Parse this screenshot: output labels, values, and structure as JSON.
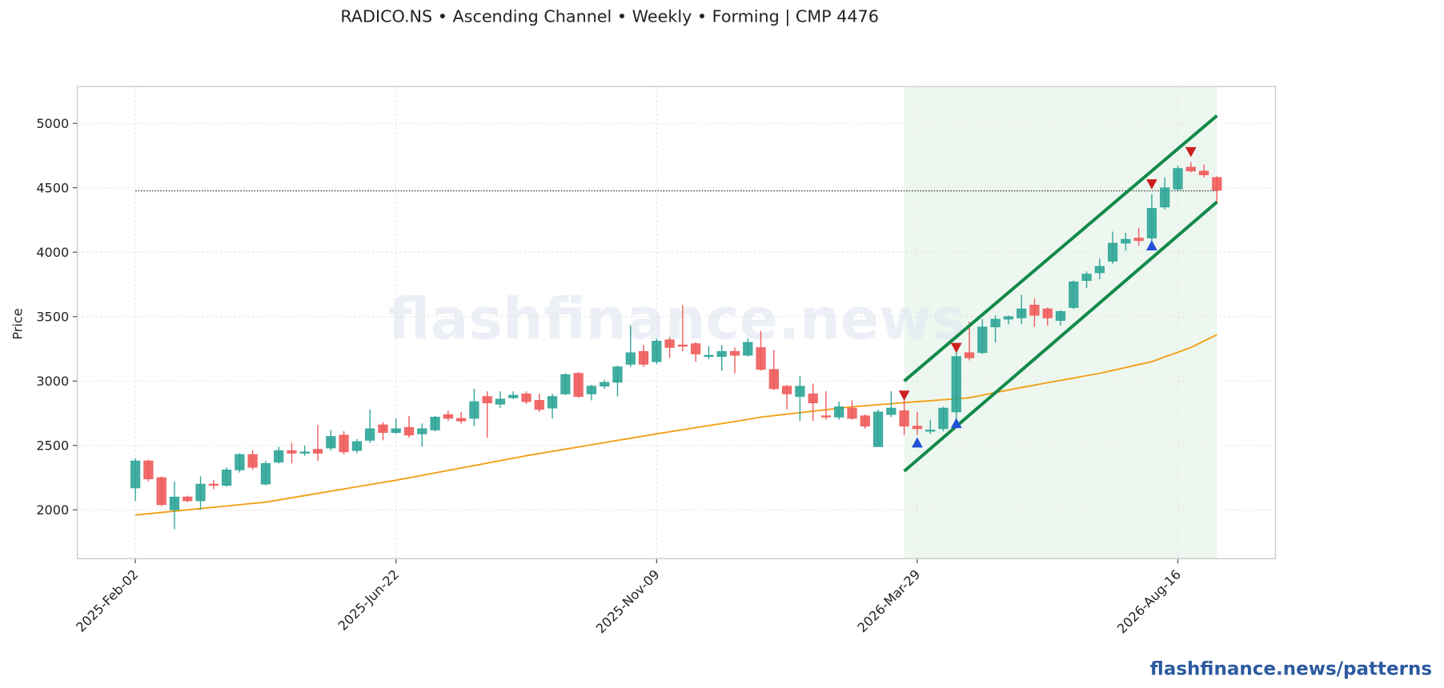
{
  "chart_data": {
    "type": "candlestick",
    "title": "RADICO.NS  •  Ascending Channel  •  Weekly  •  Forming  |  CMP 4476",
    "ylabel": "Price",
    "watermark": "flashfinance.news",
    "footer": "flashfinance.news/patterns",
    "x": [
      "2025-Feb-02",
      "2025-Feb-09",
      "2025-Feb-16",
      "2025-Feb-23",
      "2025-Mar-02",
      "2025-Mar-09",
      "2025-Mar-16",
      "2025-Mar-23",
      "2025-Mar-30",
      "2025-Apr-06",
      "2025-Apr-13",
      "2025-Apr-20",
      "2025-Apr-27",
      "2025-May-04",
      "2025-May-11",
      "2025-May-18",
      "2025-May-25",
      "2025-Jun-01",
      "2025-Jun-08",
      "2025-Jun-15",
      "2025-Jun-22",
      "2025-Jun-29",
      "2025-Jul-06",
      "2025-Jul-13",
      "2025-Jul-20",
      "2025-Jul-27",
      "2025-Aug-03",
      "2025-Aug-10",
      "2025-Aug-17",
      "2025-Aug-24",
      "2025-Aug-31",
      "2025-Sep-07",
      "2025-Sep-14",
      "2025-Sep-21",
      "2025-Sep-28",
      "2025-Oct-05",
      "2025-Oct-12",
      "2025-Oct-19",
      "2025-Oct-26",
      "2025-Nov-02",
      "2025-Nov-09",
      "2025-Nov-16",
      "2025-Nov-23",
      "2025-Nov-30",
      "2025-Dec-07",
      "2025-Dec-14",
      "2025-Dec-21",
      "2025-Dec-28",
      "2026-Jan-04",
      "2026-Jan-11",
      "2026-Jan-18",
      "2026-Jan-25",
      "2026-Feb-01",
      "2026-Feb-08",
      "2026-Feb-15",
      "2026-Feb-22",
      "2026-Mar-01",
      "2026-Mar-08",
      "2026-Mar-15",
      "2026-Mar-22",
      "2026-Mar-29",
      "2026-Apr-05",
      "2026-Apr-12",
      "2026-Apr-19",
      "2026-Apr-26",
      "2026-May-03",
      "2026-May-10",
      "2026-May-17",
      "2026-May-24",
      "2026-May-31",
      "2026-Jun-07",
      "2026-Jun-14",
      "2026-Jun-21",
      "2026-Jun-28",
      "2026-Jul-05",
      "2026-Jul-12",
      "2026-Jul-19",
      "2026-Jul-26",
      "2026-Aug-02",
      "2026-Aug-09",
      "2026-Aug-16",
      "2026-Aug-23",
      "2026-Aug-30",
      "2026-Sep-06"
    ],
    "open": [
      2170,
      2380,
      2250,
      2000,
      2100,
      2070,
      2200,
      2190,
      2310,
      2430,
      2200,
      2370,
      2460,
      2440,
      2470,
      2480,
      2580,
      2460,
      2540,
      2660,
      2600,
      2640,
      2590,
      2620,
      2740,
      2710,
      2710,
      2880,
      2820,
      2870,
      2900,
      2850,
      2790,
      2900,
      3060,
      2900,
      2960,
      2990,
      3130,
      3230,
      3150,
      3320,
      3280,
      3290,
      3190,
      3190,
      3230,
      3200,
      3260,
      3090,
      2960,
      2880,
      2900,
      2730,
      2720,
      2790,
      2730,
      2490,
      2740,
      2770,
      2650,
      2610,
      2630,
      2760,
      3220,
      3220,
      3420,
      3480,
      3490,
      3590,
      3560,
      3470,
      3570,
      3780,
      3840,
      3930,
      4070,
      4110,
      4110,
      4350,
      4490,
      4660,
      4630,
      4580
    ],
    "high": [
      2400,
      2390,
      2260,
      2220,
      2110,
      2260,
      2230,
      2330,
      2440,
      2460,
      2380,
      2490,
      2520,
      2500,
      2660,
      2620,
      2610,
      2550,
      2780,
      2680,
      2710,
      2730,
      2670,
      2730,
      2770,
      2760,
      2940,
      2920,
      2920,
      2920,
      2920,
      2900,
      2900,
      3060,
      3070,
      2970,
      3010,
      3120,
      3430,
      3280,
      3330,
      3340,
      3590,
      3300,
      3270,
      3280,
      3260,
      3330,
      3390,
      3240,
      2970,
      3040,
      2980,
      2920,
      2840,
      2850,
      2740,
      2780,
      2920,
      2850,
      2760,
      2700,
      2800,
      3250,
      3460,
      3480,
      3510,
      3510,
      3670,
      3640,
      3570,
      3550,
      3780,
      3850,
      3950,
      4160,
      4150,
      4190,
      4450,
      4580,
      4670,
      4700,
      4680,
      4590
    ],
    "low": [
      2070,
      2220,
      2030,
      1850,
      2060,
      2000,
      2160,
      2180,
      2290,
      2310,
      2190,
      2360,
      2360,
      2420,
      2380,
      2460,
      2430,
      2440,
      2520,
      2540,
      2590,
      2560,
      2490,
      2610,
      2690,
      2670,
      2650,
      2560,
      2790,
      2860,
      2820,
      2760,
      2710,
      2890,
      2870,
      2850,
      2940,
      2880,
      3110,
      3110,
      3130,
      3180,
      3230,
      3150,
      3170,
      3080,
      3060,
      3190,
      3080,
      2930,
      2780,
      2690,
      2690,
      2700,
      2700,
      2700,
      2630,
      2490,
      2720,
      2580,
      2580,
      2590,
      2610,
      2670,
      3160,
      3210,
      3300,
      3440,
      3440,
      3420,
      3430,
      3430,
      3560,
      3720,
      3790,
      3910,
      4010,
      4050,
      4080,
      4330,
      4480,
      4620,
      4580,
      4380
    ],
    "close": [
      2380,
      2240,
      2040,
      2100,
      2070,
      2200,
      2190,
      2310,
      2430,
      2330,
      2360,
      2460,
      2440,
      2450,
      2440,
      2570,
      2450,
      2530,
      2630,
      2600,
      2630,
      2580,
      2630,
      2720,
      2710,
      2690,
      2840,
      2830,
      2860,
      2890,
      2840,
      2780,
      2880,
      3050,
      2880,
      2960,
      2990,
      3110,
      3220,
      3130,
      3310,
      3260,
      3270,
      3210,
      3200,
      3230,
      3200,
      3300,
      3090,
      2940,
      2900,
      2960,
      2830,
      2720,
      2800,
      2710,
      2650,
      2760,
      2790,
      2650,
      2630,
      2620,
      2790,
      3190,
      3180,
      3420,
      3480,
      3500,
      3560,
      3510,
      3490,
      3540,
      3770,
      3830,
      3890,
      4070,
      4100,
      4090,
      4340,
      4500,
      4650,
      4630,
      4600,
      4480
    ],
    "up_color": "#2ea597",
    "down_color": "#ef5b5b",
    "moving_average": {
      "color": "#f29e12",
      "values": [
        1960,
        1970,
        1980,
        1990,
        2000,
        2010,
        2020,
        2030,
        2040,
        2050,
        2060,
        2077,
        2094,
        2111,
        2128,
        2145,
        2162,
        2179,
        2196,
        2213,
        2230,
        2249,
        2268,
        2287,
        2306,
        2325,
        2344,
        2363,
        2382,
        2401,
        2420,
        2437,
        2454,
        2471,
        2488,
        2505,
        2522,
        2539,
        2556,
        2573,
        2590,
        2606,
        2622,
        2638,
        2654,
        2670,
        2686,
        2702,
        2720,
        2731,
        2743,
        2754,
        2766,
        2777,
        2789,
        2800,
        2808,
        2816,
        2824,
        2832,
        2840,
        2847,
        2855,
        2862,
        2870,
        2890,
        2910,
        2930,
        2950,
        2968,
        2987,
        3005,
        3023,
        3042,
        3060,
        3082,
        3105,
        3128,
        3150,
        3187,
        3223,
        3260,
        3310,
        3360
      ]
    },
    "channel": {
      "color": "#138a4a",
      "upper": {
        "x": [
          "2026-Mar-22",
          "2026-Sep-06"
        ],
        "values": [
          3000,
          5060
        ]
      },
      "lower": {
        "x": [
          "2026-Mar-22",
          "2026-Sep-06"
        ],
        "values": [
          2300,
          4390
        ]
      }
    },
    "zone": {
      "start": "2026-Mar-22",
      "end": "2026-Sep-06",
      "color": "#e6f4ea"
    },
    "cmp_level": 4476,
    "peaks": {
      "color": "#cc2020",
      "x": [
        "2026-Mar-22",
        "2026-Apr-19",
        "2026-Aug-02",
        "2026-Aug-23"
      ],
      "values": [
        2890,
        3260,
        4530,
        4780
      ]
    },
    "troughs": {
      "color": "#2050d8",
      "x": [
        "2026-Mar-29",
        "2026-Apr-19",
        "2026-Aug-02"
      ],
      "values": [
        2520,
        2670,
        4050
      ]
    },
    "ylim": [
      1621,
      5286
    ],
    "yticks": [
      2000,
      2500,
      3000,
      3500,
      4000,
      4500,
      5000
    ],
    "xticks": [
      "2025-Feb-02",
      "2025-Jun-22",
      "2025-Nov-09",
      "2026-Mar-29",
      "2026-Aug-16"
    ],
    "grid": true
  }
}
